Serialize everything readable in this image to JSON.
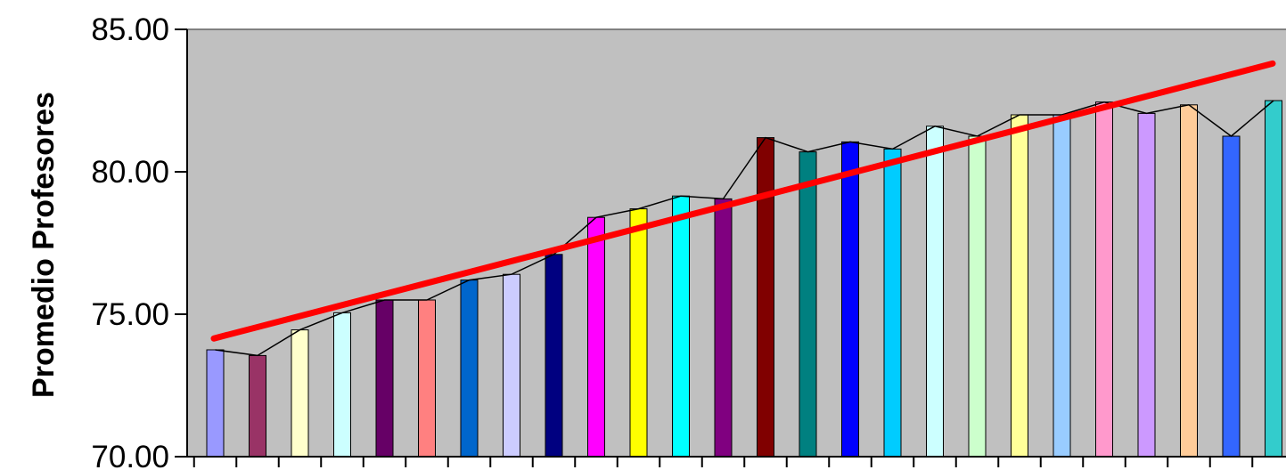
{
  "chart_data": {
    "type": "bar",
    "ylabel": "Promedio Profesores",
    "ylim": [
      70,
      85
    ],
    "yticks": [
      "70.00",
      "75.00",
      "80.00",
      "85.00"
    ],
    "ytick_values": [
      70,
      75,
      80,
      85
    ],
    "plot_background": "#c0c0c0",
    "grid": false,
    "categories_shown": false,
    "values": [
      73.75,
      73.55,
      74.45,
      75.05,
      75.5,
      75.5,
      76.2,
      76.4,
      77.1,
      78.4,
      78.7,
      79.15,
      79.05,
      81.2,
      80.7,
      81.05,
      80.8,
      81.6,
      81.25,
      82.0,
      82.0,
      82.45,
      82.05,
      82.35,
      81.25,
      82.5
    ],
    "bar_colors": [
      "#9999ff",
      "#993366",
      "#ffffcc",
      "#ccffff",
      "#660066",
      "#ff8080",
      "#0066cc",
      "#ccccff",
      "#000080",
      "#ff00ff",
      "#ffff00",
      "#00ffff",
      "#800080",
      "#800000",
      "#008080",
      "#0000ff",
      "#00ccff",
      "#ccffff",
      "#ccffcc",
      "#ffff99",
      "#99ccff",
      "#ff99cc",
      "#cc99ff",
      "#ffcc99",
      "#3366ff",
      "#33cccc"
    ],
    "series": [
      {
        "type": "line",
        "color": "#000000"
      },
      {
        "type": "trendline",
        "color": "#ff0000",
        "start": 74.15,
        "end": 83.8
      }
    ]
  }
}
